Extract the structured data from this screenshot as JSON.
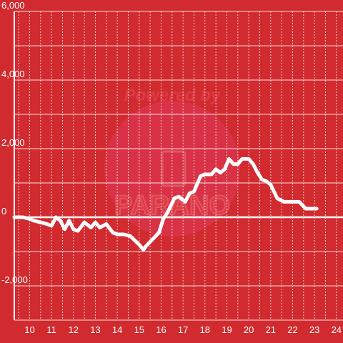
{
  "watermark": {
    "top_text": "Powered by",
    "brand_text": "PARANO",
    "icon": "phone-outline-icon"
  },
  "colors": {
    "background": "#d12a2f",
    "line": "#ffffff",
    "grid": "#ffffff",
    "watermark": "#e0395a"
  },
  "chart_data": {
    "type": "line",
    "title": "",
    "xlabel": "",
    "ylabel": "",
    "xlim": [
      9.3,
      24.3
    ],
    "ylim": [
      -3000,
      6000
    ],
    "x_ticks": [
      10,
      11,
      12,
      13,
      14,
      15,
      16,
      17,
      18,
      19,
      20,
      21,
      22,
      23,
      24
    ],
    "y_ticks": [
      -2000,
      0,
      2000,
      4000,
      6000
    ],
    "y_tick_labels": [
      "-2,000",
      "0",
      "2,000",
      "4,000",
      "6,000"
    ],
    "grid": true,
    "series": [
      {
        "name": "",
        "x": [
          9.3,
          9.7,
          10.0,
          10.2,
          10.5,
          10.8,
          11.0,
          11.2,
          11.4,
          11.6,
          11.8,
          12.0,
          12.2,
          12.5,
          12.8,
          13.0,
          13.2,
          13.5,
          13.8,
          14.0,
          14.3,
          14.6,
          15.0,
          15.2,
          15.3,
          15.6,
          15.9,
          16.1,
          16.3,
          16.6,
          16.8,
          17.1,
          17.3,
          17.5,
          17.8,
          18.0,
          18.3,
          18.5,
          18.7,
          18.9,
          19.1,
          19.3,
          19.5,
          19.7,
          20.0,
          20.2,
          20.4,
          20.6,
          20.8,
          21.0,
          21.3,
          21.6,
          21.8,
          22.0,
          22.3,
          22.6,
          22.8,
          23.1
        ],
        "y": [
          0,
          0,
          -50,
          -100,
          -150,
          -200,
          -250,
          0,
          -100,
          -350,
          -100,
          -350,
          -400,
          -150,
          -300,
          -150,
          -300,
          -200,
          -450,
          -500,
          -500,
          -550,
          -800,
          -950,
          -850,
          -650,
          -450,
          -50,
          150,
          550,
          600,
          450,
          700,
          750,
          1200,
          1250,
          1250,
          1400,
          1300,
          1400,
          1700,
          1550,
          1550,
          1700,
          1700,
          1550,
          1300,
          1100,
          1050,
          950,
          550,
          450,
          450,
          450,
          450,
          250,
          250,
          250
        ]
      }
    ]
  }
}
